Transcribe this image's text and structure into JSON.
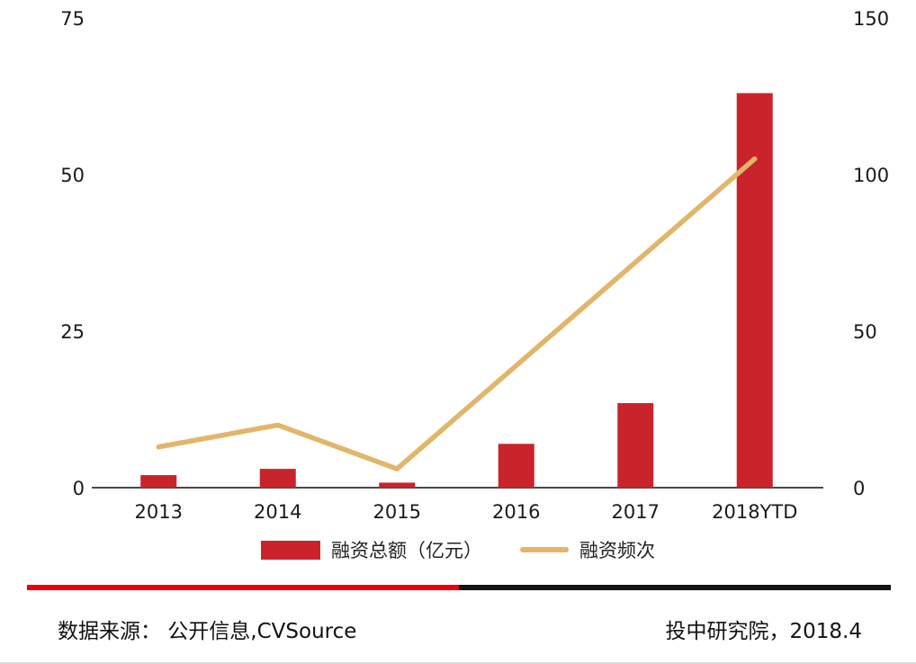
{
  "chart_data": {
    "type": "combo",
    "title": "",
    "categories": [
      "2013",
      "2014",
      "2015",
      "2016",
      "2017",
      "2018YTD"
    ],
    "series": [
      {
        "name": "融资总额（亿元）",
        "type": "bar",
        "axis": "left",
        "color": "#c9242b",
        "values": [
          2,
          3,
          0.8,
          7,
          13.5,
          63
        ]
      },
      {
        "name": "融资频次",
        "type": "line",
        "axis": "right",
        "color": "#e2b56a",
        "values": [
          13,
          20,
          6,
          39,
          72,
          105
        ]
      }
    ],
    "left_axis": {
      "min": 0,
      "max": 75,
      "ticks": [
        0,
        25,
        50,
        75
      ]
    },
    "right_axis": {
      "min": 0,
      "max": 150,
      "ticks": [
        0,
        50,
        100,
        150
      ]
    },
    "grid": false,
    "legend_position": "bottom"
  },
  "footer": {
    "source_text": "数据来源： 公开信息,CVSource",
    "publisher_text": "投中研究院，2018.4"
  },
  "divider": {
    "left_color": "#e8000d",
    "right_color": "#141414"
  }
}
